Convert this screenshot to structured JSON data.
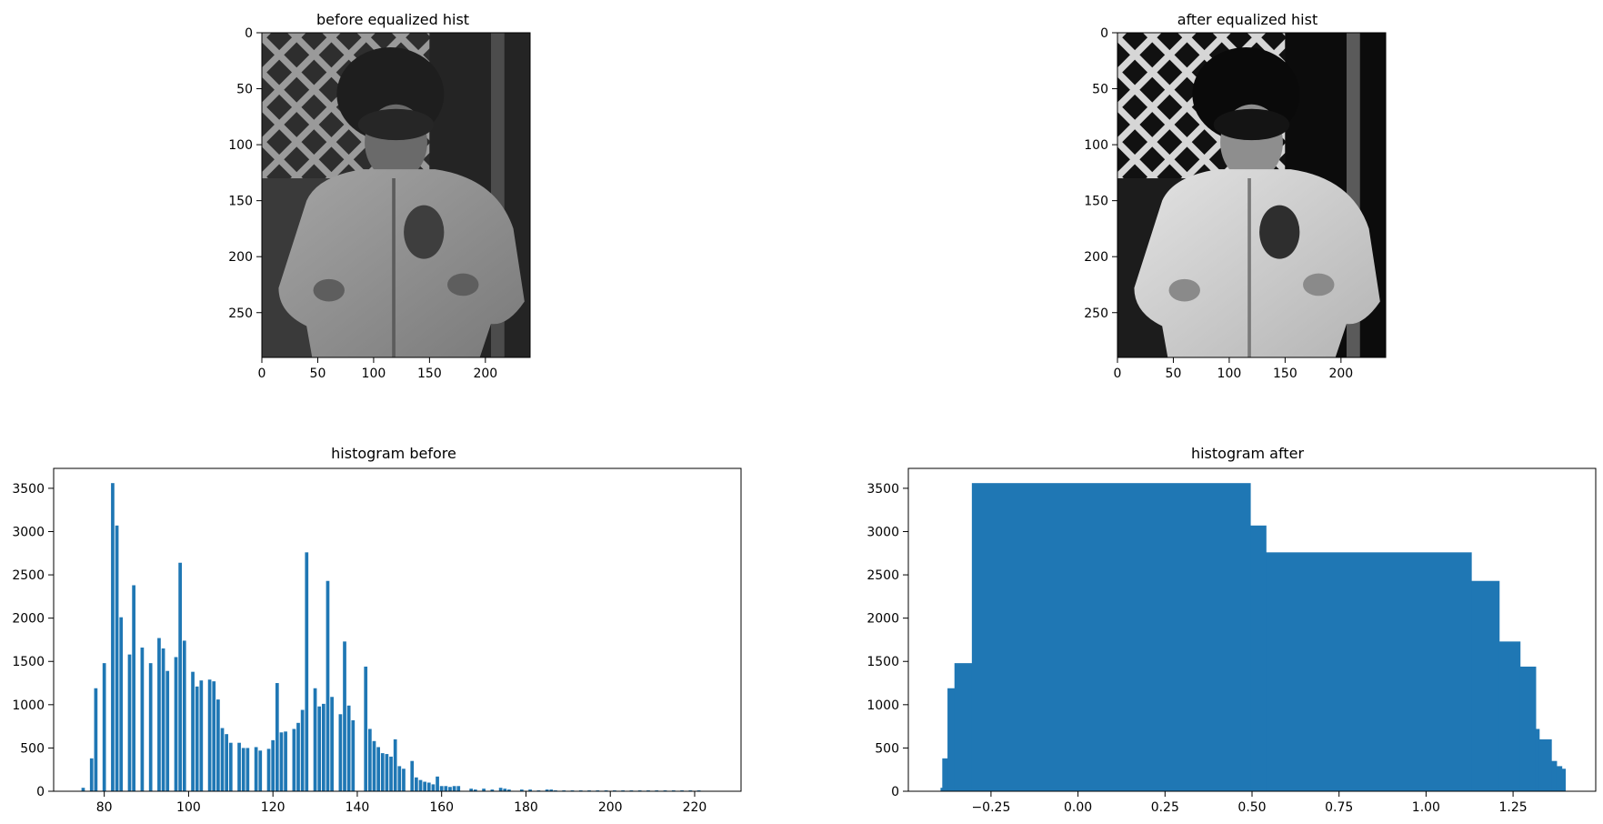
{
  "panels": {
    "before_image": {
      "title": "before equalized hist"
    },
    "after_image": {
      "title": "after equalized hist"
    },
    "image_axes": {
      "xticks": [
        0,
        50,
        100,
        150,
        200
      ],
      "yticks": [
        0,
        50,
        100,
        150,
        200,
        250
      ],
      "xlim": [
        0,
        240
      ],
      "ylim": [
        0,
        290
      ]
    }
  },
  "chart_data": [
    {
      "type": "bar",
      "title": "histogram before",
      "xlabel": "",
      "ylabel": "",
      "xlim": [
        68,
        231
      ],
      "ylim": [
        0,
        3730
      ],
      "xticks": [
        80,
        100,
        120,
        140,
        160,
        180,
        200,
        220
      ],
      "yticks": [
        0,
        500,
        1000,
        1500,
        2000,
        2500,
        3000,
        3500
      ],
      "bar_width": 0.8,
      "color": "#1f77b4",
      "x": [
        75,
        77,
        78,
        80,
        82,
        83,
        84,
        86,
        87,
        89,
        91,
        93,
        94,
        95,
        97,
        98,
        99,
        101,
        102,
        103,
        105,
        106,
        107,
        108,
        109,
        110,
        112,
        113,
        114,
        116,
        117,
        119,
        120,
        121,
        122,
        123,
        125,
        126,
        127,
        128,
        130,
        131,
        132,
        133,
        134,
        136,
        137,
        138,
        139,
        142,
        143,
        144,
        145,
        146,
        147,
        148,
        149,
        150,
        151,
        153,
        154,
        155,
        156,
        157,
        158,
        159,
        160,
        161,
        162,
        163,
        164,
        167,
        168,
        170,
        172,
        174,
        175,
        176,
        179,
        181,
        183,
        185,
        186,
        187,
        189,
        191,
        193,
        195,
        197,
        199,
        201,
        203,
        205,
        207,
        209,
        211,
        213,
        215,
        217,
        219,
        221
      ],
      "values": [
        40,
        380,
        1190,
        1480,
        3560,
        3070,
        2010,
        1580,
        2380,
        1660,
        1480,
        1770,
        1650,
        1390,
        1550,
        2640,
        1740,
        1380,
        1210,
        1280,
        1290,
        1270,
        1060,
        730,
        660,
        560,
        560,
        500,
        500,
        510,
        470,
        490,
        590,
        1250,
        680,
        690,
        720,
        790,
        940,
        2760,
        1190,
        980,
        1010,
        2430,
        1090,
        890,
        1730,
        990,
        820,
        1440,
        720,
        580,
        510,
        440,
        430,
        400,
        600,
        290,
        260,
        350,
        160,
        130,
        110,
        100,
        80,
        170,
        60,
        60,
        50,
        60,
        60,
        30,
        20,
        30,
        20,
        40,
        30,
        20,
        20,
        20,
        10,
        20,
        20,
        10,
        10,
        10,
        10,
        10,
        10,
        10,
        10,
        10,
        10,
        10,
        10,
        10,
        10,
        10,
        10,
        10,
        10
      ]
    },
    {
      "type": "bar",
      "title": "histogram after",
      "xlabel": "",
      "ylabel": "",
      "xlim": [
        -0.4875,
        1.4875
      ],
      "ylim": [
        0,
        3730
      ],
      "xticks": [
        -0.25,
        0.0,
        0.25,
        0.5,
        0.75,
        1.0,
        1.25
      ],
      "xtick_labels": [
        "−0.25",
        "0.00",
        "0.25",
        "0.50",
        "0.75",
        "1.00",
        "1.25"
      ],
      "yticks": [
        0,
        500,
        1000,
        1500,
        2000,
        2500,
        3000,
        3500
      ],
      "color": "#1f77b4",
      "steps": [
        [
          -0.395,
          40
        ],
        [
          -0.39,
          380
        ],
        [
          -0.375,
          1190
        ],
        [
          -0.355,
          1480
        ],
        [
          -0.305,
          3560
        ],
        [
          0.495,
          3070
        ],
        [
          0.54,
          2760
        ],
        [
          1.13,
          2430
        ],
        [
          1.21,
          1730
        ],
        [
          1.27,
          1440
        ],
        [
          1.315,
          720
        ],
        [
          1.325,
          600
        ],
        [
          1.36,
          350
        ],
        [
          1.375,
          290
        ],
        [
          1.39,
          260
        ],
        [
          1.4,
          0
        ]
      ]
    }
  ]
}
